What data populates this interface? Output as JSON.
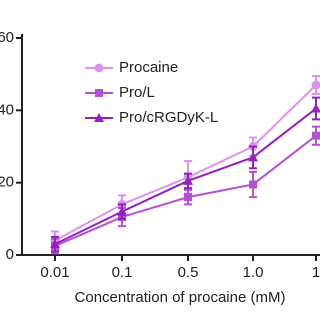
{
  "chart_data": {
    "type": "line",
    "x_label": "Concentration of procaine (mM)",
    "categories": [
      "0.01",
      "0.1",
      "0.5",
      "1.0",
      "1"
    ],
    "ylim": [
      0,
      60
    ],
    "yticks": [
      0,
      20,
      40,
      60
    ],
    "series": [
      {
        "name": "Procaine",
        "color": "#dc92ec",
        "marker": "circle",
        "values": [
          4,
          14,
          21.5,
          30,
          47
        ],
        "errors": [
          2.5,
          2.5,
          4.5,
          2.5,
          2.5
        ]
      },
      {
        "name": "Pro/L",
        "color": "#b44fd6",
        "marker": "square",
        "values": [
          2.5,
          10.5,
          16,
          19.5,
          33
        ],
        "errors": [
          2,
          2.5,
          2,
          3.5,
          2.5
        ]
      },
      {
        "name": "Pro/cRGDyK-L",
        "color": "#9420c0",
        "marker": "triangle",
        "values": [
          3,
          12,
          20.5,
          27,
          40.5
        ],
        "errors": [
          2,
          2,
          2,
          3,
          3
        ]
      }
    ]
  }
}
